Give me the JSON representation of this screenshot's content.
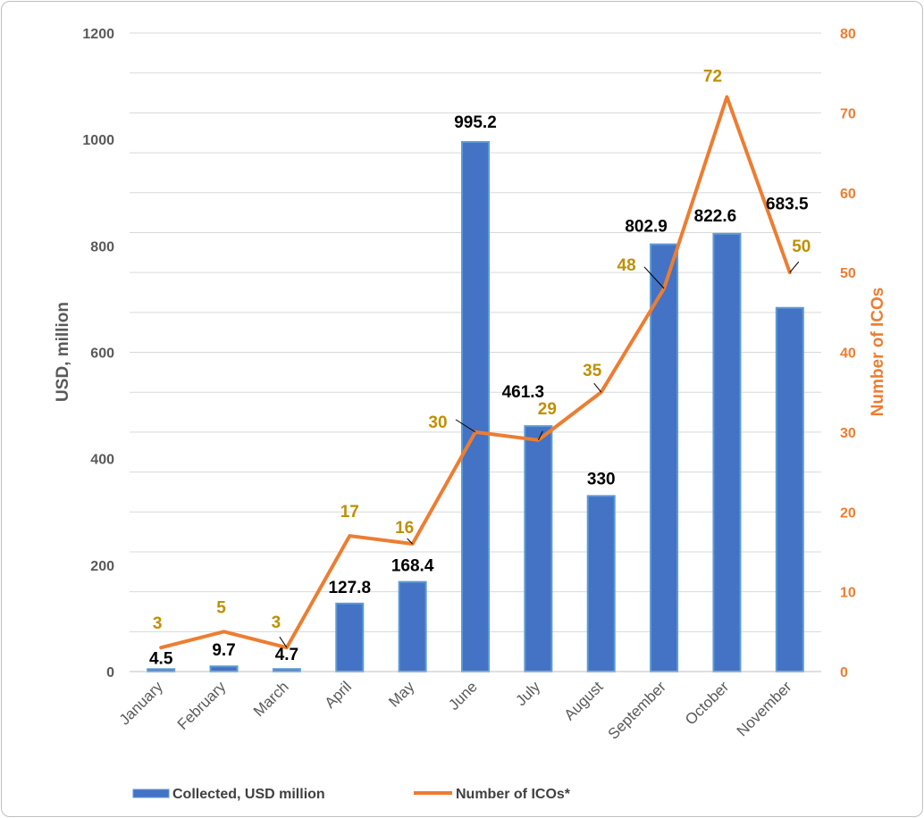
{
  "chart_data": {
    "type": "bar",
    "categories": [
      "January",
      "February",
      "March",
      "April",
      "May",
      "June",
      "July",
      "August",
      "September",
      "October",
      "November"
    ],
    "series": [
      {
        "name": "Collected, USD million",
        "type": "bar",
        "axis": "left",
        "color": "#4472C4",
        "values": [
          4.5,
          9.7,
          4.7,
          127.8,
          168.4,
          995.2,
          461.3,
          330,
          802.9,
          822.6,
          683.5
        ],
        "labels": [
          "4.5",
          "9.7",
          "4.7",
          "127.8",
          "168.4",
          "995.2",
          "461.3",
          "330",
          "802.9",
          "822.6",
          "683.5"
        ]
      },
      {
        "name": "Number of ICOs*",
        "type": "line",
        "axis": "right",
        "color": "#ED7D31",
        "values": [
          3,
          5,
          3,
          17,
          16,
          30,
          29,
          35,
          48,
          72,
          50
        ],
        "labels": [
          "3",
          "5",
          "3",
          "17",
          "16",
          "30",
          "29",
          "35",
          "48",
          "72",
          "50"
        ]
      }
    ],
    "y_left": {
      "label": "USD, million",
      "range": [
        0,
        1200
      ],
      "ticks": [
        "0",
        "200",
        "400",
        "600",
        "800",
        "1000",
        "1200"
      ]
    },
    "y_right": {
      "label": "Number of ICOs",
      "range": [
        0,
        80
      ],
      "ticks": [
        "0",
        "10",
        "20",
        "30",
        "40",
        "50",
        "60",
        "70",
        "80"
      ]
    },
    "grid": true,
    "legend": {
      "position": "bottom-left"
    }
  }
}
